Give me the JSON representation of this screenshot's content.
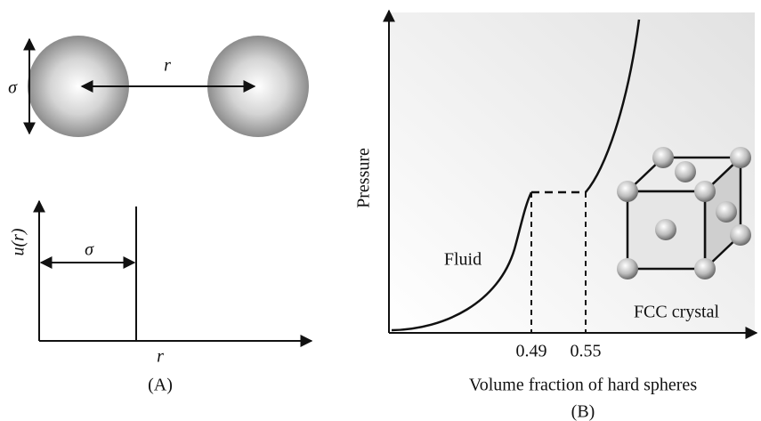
{
  "panel_a": {
    "sigma_top": "σ",
    "r_top": "r",
    "y_axis_label": "u(r)",
    "sigma_bottom": "σ",
    "x_axis_label": "r",
    "caption": "(A)"
  },
  "panel_b": {
    "y_axis_label": "Pressure",
    "fluid_label": "Fluid",
    "tick_left": "0.49",
    "tick_right": "0.55",
    "crystal_label": "FCC crystal",
    "x_axis_label": "Volume fraction of hard spheres",
    "caption": "(B)"
  }
}
